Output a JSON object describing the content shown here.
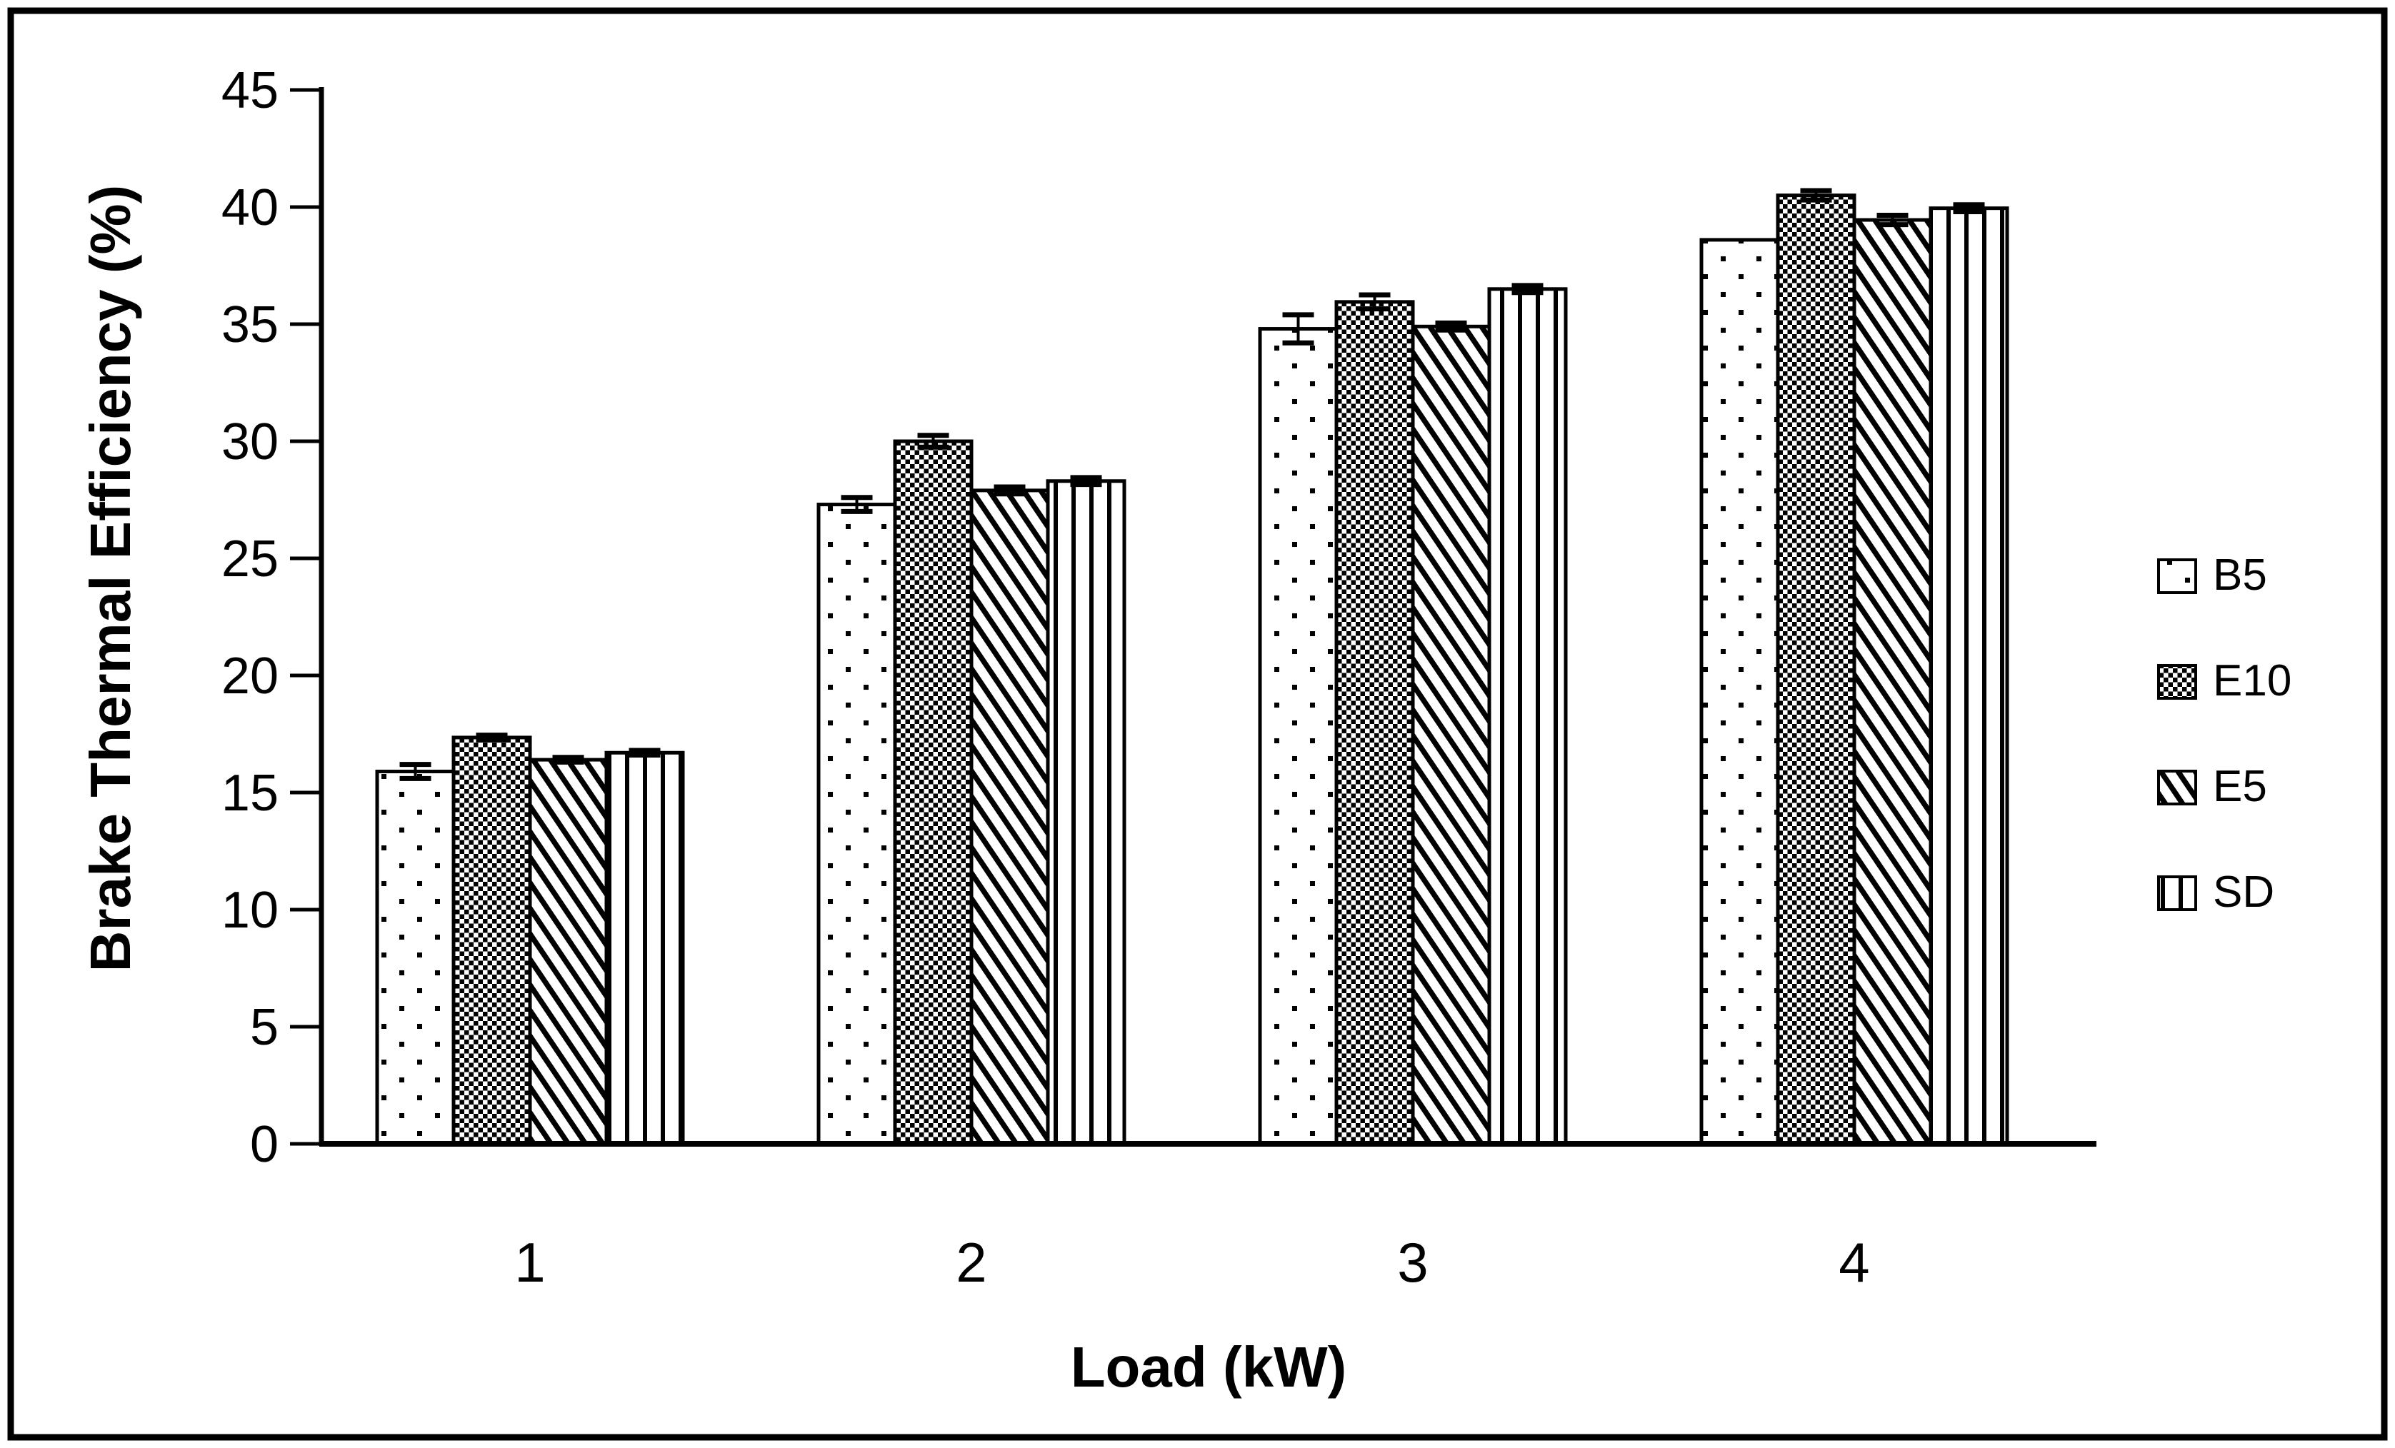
{
  "figure": {
    "background": "#ffffff",
    "ink_color": "#000000",
    "border_color": "#000000"
  },
  "chart_data": {
    "type": "bar",
    "title": "",
    "xlabel": "Load (kW)",
    "ylabel": "Brake Thermal Efficiency (%)",
    "categories": [
      "1",
      "2",
      "3",
      "4"
    ],
    "series": [
      {
        "name": "B5",
        "pattern": "dots",
        "values": [
          15.9,
          27.3,
          34.8,
          38.6
        ],
        "errors": [
          0.3,
          0.3,
          0.6,
          0
        ]
      },
      {
        "name": "E10",
        "pattern": "checker",
        "values": [
          17.35,
          30.0,
          35.95,
          40.5
        ],
        "errors": [
          0.1,
          0.25,
          0.3,
          0.2
        ]
      },
      {
        "name": "E5",
        "pattern": "diagonal",
        "values": [
          16.4,
          27.9,
          34.9,
          39.45
        ],
        "errors": [
          0.1,
          0.15,
          0.15,
          0.2
        ]
      },
      {
        "name": "SD",
        "pattern": "vlines",
        "values": [
          16.7,
          28.3,
          36.5,
          39.95
        ],
        "errors": [
          0.1,
          0.15,
          0.15,
          0.15
        ]
      }
    ],
    "ylim": [
      0,
      45
    ],
    "ytick_step": 5,
    "yticks": [
      0,
      5,
      10,
      15,
      20,
      25,
      30,
      35,
      40,
      45
    ],
    "legend_position": "right",
    "legend_labels": [
      "B5",
      "E10",
      "E5",
      "SD"
    ],
    "grid": false,
    "error_bars": true
  }
}
